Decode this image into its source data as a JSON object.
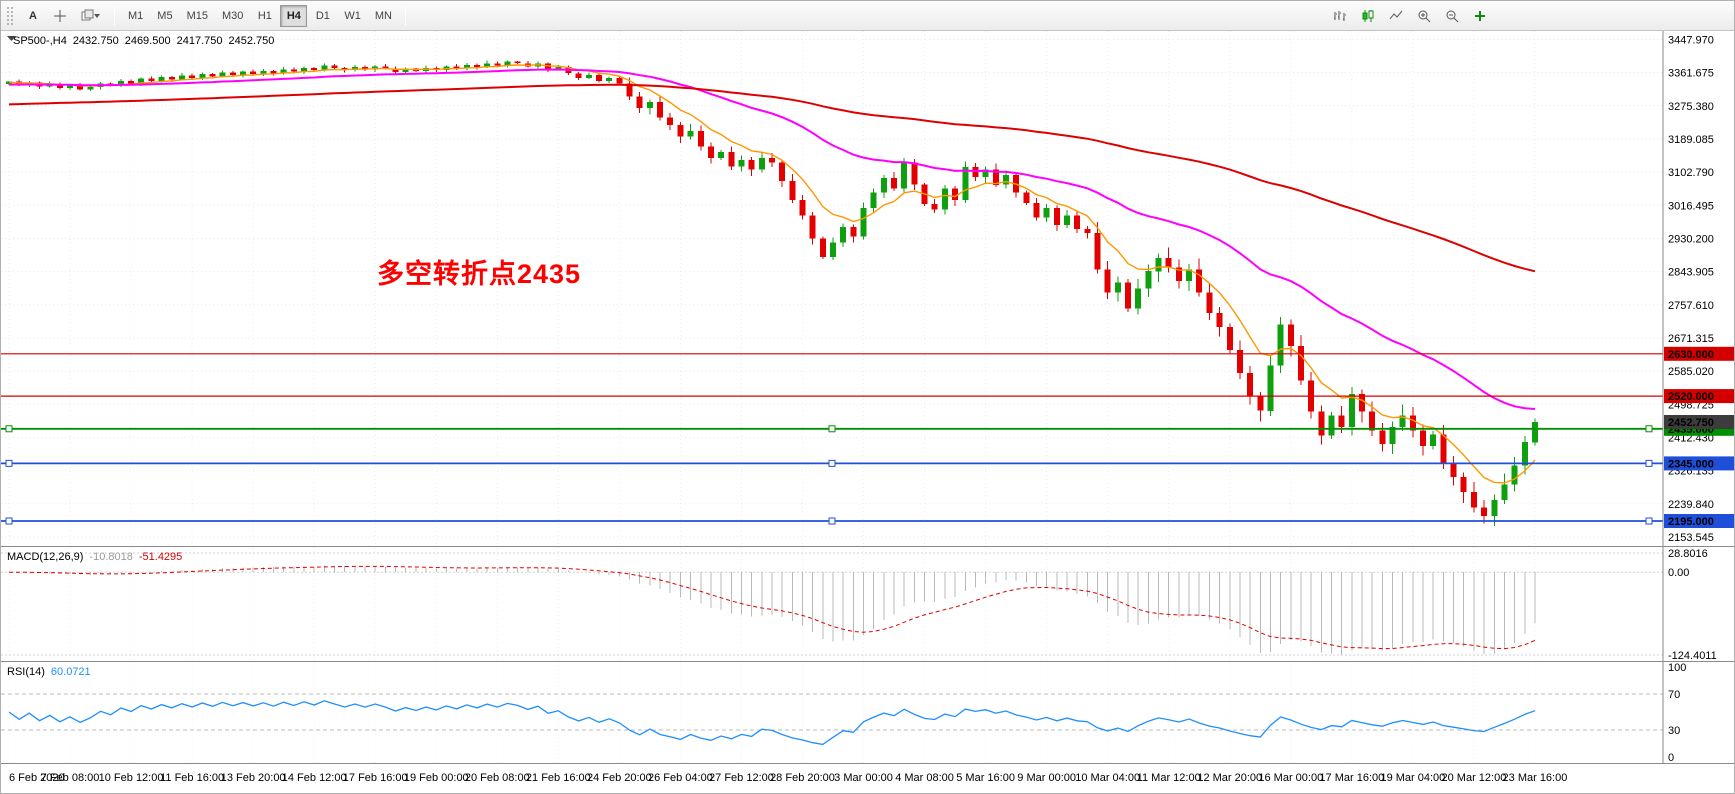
{
  "toolbar": {
    "text_tool_label": "A",
    "timeframes": [
      "M1",
      "M5",
      "M15",
      "M30",
      "H1",
      "H4",
      "D1",
      "W1",
      "MN"
    ],
    "active_timeframe": "H4"
  },
  "chart": {
    "title": "SP500-,H4",
    "ohlc": {
      "open": "2432.750",
      "high": "2469.500",
      "low": "2417.750",
      "close": "2452.750"
    },
    "annotation": {
      "text": "多空转折点2435",
      "color": "#ff0000"
    }
  },
  "chart_data": {
    "type": "candlestick",
    "symbol": "SP500-",
    "timeframe": "H4",
    "price_axis": {
      "min": 2130,
      "max": 3470,
      "labels": [
        "3447.970",
        "3361.675",
        "3275.380",
        "3189.085",
        "3102.790",
        "3016.495",
        "2930.200",
        "2843.905",
        "2757.610",
        "2671.315",
        "2585.020",
        "2498.725",
        "2412.430",
        "2326.135",
        "2239.840",
        "2153.545"
      ]
    },
    "time_axis": [
      "6 Feb 2020",
      "7 Feb 08:00",
      "10 Feb 12:00",
      "11 Feb 16:00",
      "13 Feb 20:00",
      "14 Feb 12:00",
      "17 Feb 16:00",
      "19 Feb 00:00",
      "20 Feb 08:00",
      "21 Feb 16:00",
      "24 Feb 20:00",
      "26 Feb 04:00",
      "27 Feb 12:00",
      "28 Feb 20:00",
      "3 Mar 00:00",
      "4 Mar 08:00",
      "5 Mar 16:00",
      "9 Mar 00:00",
      "10 Mar 04:00",
      "11 Mar 12:00",
      "12 Mar 20:00",
      "16 Mar 00:00",
      "17 Mar 16:00",
      "19 Mar 04:00",
      "20 Mar 12:00",
      "23 Mar 16:00"
    ],
    "first_open": 3332,
    "closes": [
      3338,
      3330,
      3336,
      3326,
      3332,
      3322,
      3328,
      3318,
      3324,
      3334,
      3328,
      3340,
      3334,
      3346,
      3340,
      3350,
      3344,
      3354,
      3348,
      3358,
      3352,
      3362,
      3356,
      3364,
      3358,
      3366,
      3360,
      3370,
      3364,
      3374,
      3368,
      3380,
      3374,
      3368,
      3376,
      3370,
      3378,
      3372,
      3364,
      3372,
      3366,
      3374,
      3368,
      3378,
      3372,
      3382,
      3376,
      3386,
      3380,
      3390,
      3386,
      3378,
      3386,
      3370,
      3376,
      3360,
      3348,
      3356,
      3340,
      3348,
      3334,
      3300,
      3270,
      3285,
      3245,
      3225,
      3195,
      3210,
      3170,
      3140,
      3155,
      3118,
      3135,
      3110,
      3140,
      3128,
      3080,
      3030,
      2990,
      2930,
      2882,
      2920,
      2960,
      2935,
      3010,
      3050,
      3088,
      3060,
      3128,
      3070,
      3020,
      3005,
      3060,
      3030,
      3116,
      3090,
      3110,
      3070,
      3095,
      3050,
      3022,
      2985,
      3010,
      2965,
      2990,
      2955,
      2944,
      2850,
      2790,
      2815,
      2748,
      2800,
      2845,
      2880,
      2855,
      2820,
      2850,
      2790,
      2736,
      2700,
      2640,
      2580,
      2520,
      2482,
      2600,
      2706,
      2650,
      2560,
      2480,
      2418,
      2470,
      2440,
      2526,
      2480,
      2430,
      2396,
      2440,
      2470,
      2430,
      2390,
      2420,
      2346,
      2310,
      2270,
      2230,
      2208,
      2250,
      2290,
      2340,
      2400,
      2453
    ],
    "wick_segments": [
      {
        "until": 60,
        "wick": 6
      },
      {
        "until": 80,
        "wick": 16
      },
      {
        "until": 107,
        "wick": 14
      },
      {
        "until": 151,
        "wick": 26
      }
    ],
    "up_color": "#0fa00f",
    "down_color": "#e30000",
    "moving_averages": [
      {
        "name": "fast-orange",
        "color": "#ff9800",
        "alpha": 0.22,
        "seed": 3336,
        "width": 1.4
      },
      {
        "name": "medium-magenta",
        "color": "#ff00ff",
        "alpha": 0.055,
        "seed": 3330,
        "width": 2
      },
      {
        "name": "slow-red",
        "color": "#dd0000",
        "alpha": 0.016,
        "seed": 3278,
        "width": 2
      }
    ],
    "hlines": [
      {
        "price": 2630,
        "color": "#d40000",
        "label": "2630.000",
        "width": 1.2,
        "handles": false
      },
      {
        "price": 2520,
        "color": "#d40000",
        "label": "2520.000",
        "width": 1.2,
        "handles": false
      },
      {
        "price": 2435,
        "color": "#008f00",
        "label": "2435.000",
        "width": 1.8,
        "handles": true
      },
      {
        "price": 2345,
        "color": "#1f4fd8",
        "label": "2345.000",
        "width": 1.8,
        "handles": true
      },
      {
        "price": 2195,
        "color": "#1f4fd8",
        "label": "2195.000",
        "width": 1.8,
        "handles": true
      }
    ],
    "current_price": {
      "value": 2452.75,
      "label": "2452.750",
      "color": "#3c3c3c"
    },
    "macd": {
      "label": "MACD(12,26,9)",
      "value_main": "-10.8018",
      "value_signal": "-51.4295",
      "scale_labels": [
        "28.8016",
        "0.00",
        "-124.4011"
      ],
      "scale_values": [
        28.8016,
        0,
        -124.4011
      ],
      "hist_color": "#b9b9b9",
      "signal_color": "#e00000"
    },
    "rsi": {
      "label": "RSI(14)",
      "value": "60.0721",
      "period": 14,
      "scale_labels": [
        "100",
        "70",
        "30",
        "0"
      ],
      "scale_values": [
        100,
        70,
        30,
        0
      ],
      "levels": [
        70,
        30
      ],
      "color": "#1f8fff"
    }
  }
}
